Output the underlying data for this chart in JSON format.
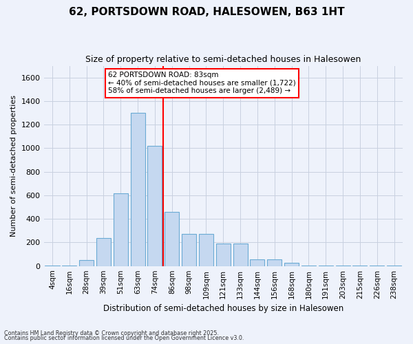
{
  "title1": "62, PORTSDOWN ROAD, HALESOWEN, B63 1HT",
  "title2": "Size of property relative to semi-detached houses in Halesowen",
  "xlabel": "Distribution of semi-detached houses by size in Halesowen",
  "ylabel": "Number of semi-detached properties",
  "bins": [
    "4sqm",
    "16sqm",
    "28sqm",
    "39sqm",
    "51sqm",
    "63sqm",
    "74sqm",
    "86sqm",
    "98sqm",
    "109sqm",
    "121sqm",
    "133sqm",
    "144sqm",
    "156sqm",
    "168sqm",
    "180sqm",
    "191sqm",
    "203sqm",
    "215sqm",
    "226sqm",
    "238sqm"
  ],
  "bar_heights": [
    2,
    2,
    50,
    240,
    620,
    1300,
    1020,
    460,
    270,
    270,
    190,
    190,
    55,
    55,
    30,
    5,
    5,
    2,
    2,
    2,
    2
  ],
  "bar_color": "#c5d8f0",
  "bar_edge_color": "#6aaad4",
  "vline_color": "red",
  "annotation_title": "62 PORTSDOWN ROAD: 83sqm",
  "annotation_line1": "← 40% of semi-detached houses are smaller (1,722)",
  "annotation_line2": "58% of semi-detached houses are larger (2,489) →",
  "annotation_box_color": "white",
  "annotation_box_edge_color": "red",
  "footnote1": "Contains HM Land Registry data © Crown copyright and database right 2025.",
  "footnote2": "Contains public sector information licensed under the Open Government Licence v3.0.",
  "ylim": [
    0,
    1700
  ],
  "yticks": [
    0,
    200,
    400,
    600,
    800,
    1000,
    1200,
    1400,
    1600
  ],
  "grid_color": "#c8d0e0",
  "background_color": "#eef2fb"
}
